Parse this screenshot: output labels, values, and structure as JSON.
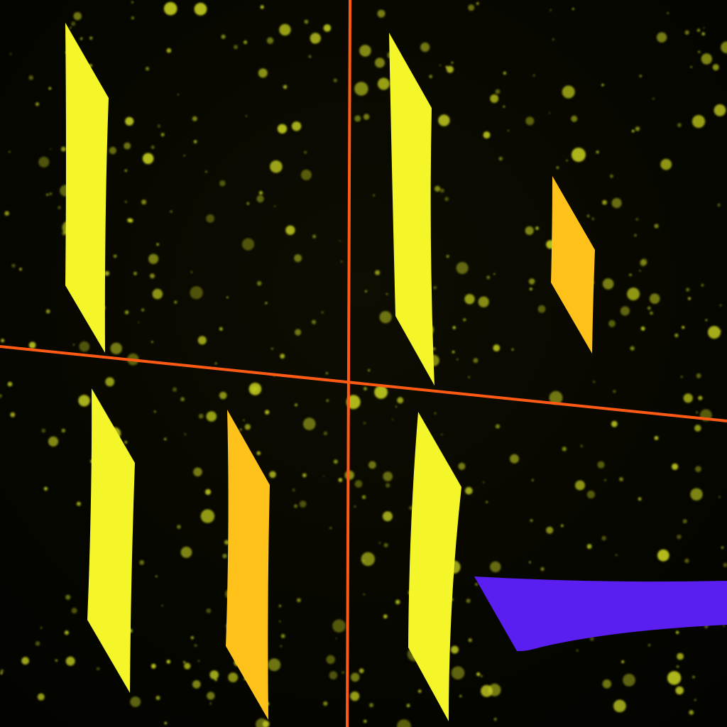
{
  "scene": {
    "type": "game-canvas",
    "colors": {
      "background": "#050500",
      "particles": "#c8d21e",
      "crosshair": "#ff5a14",
      "card_bright": "#f4f62a",
      "card_orange": "#ffc21a",
      "paddle": "#5a1ef0"
    },
    "objects": [
      "yellow-card",
      "yellow-card",
      "orange-card",
      "yellow-card",
      "orange-card",
      "yellow-card",
      "purple-paddle",
      "vertical-divider",
      "horizontal-divider",
      "particle-field"
    ]
  }
}
